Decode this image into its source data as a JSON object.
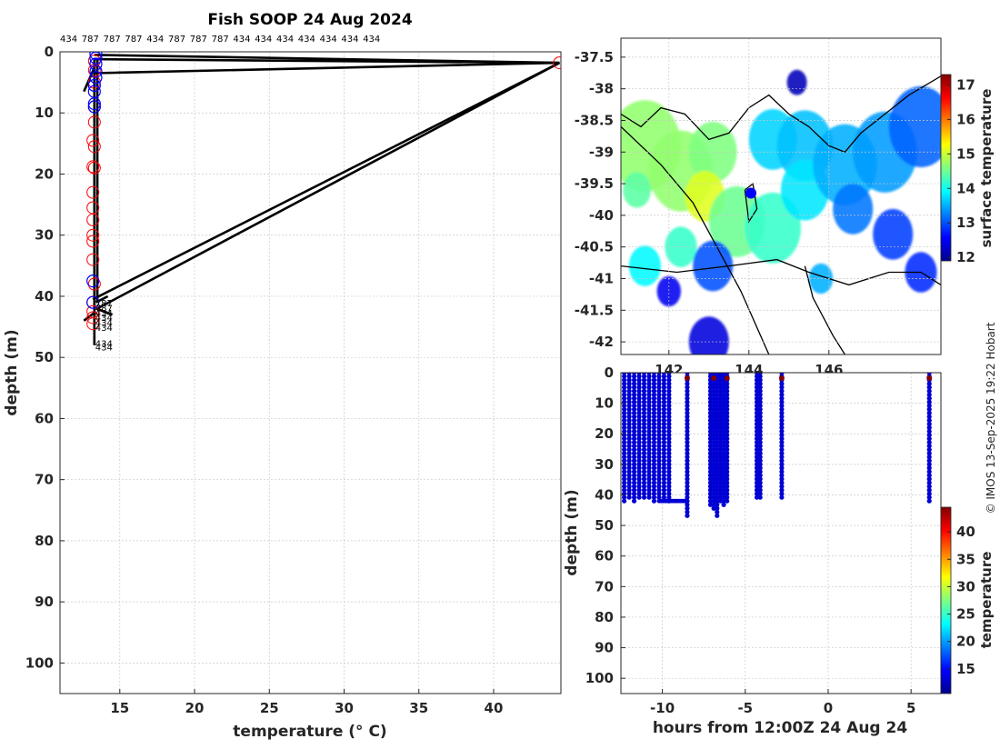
{
  "title": "Fish SOOP 24 Aug 2024",
  "credit": "© IMOS 13-Sep-2025 19:22 Hobart",
  "colors": {
    "near": "#0000ff",
    "far": "#ff0000",
    "line": "#000000"
  },
  "chart_data": [
    {
      "type": "scatter",
      "name": "profile",
      "xlabel": "temperature (° C)",
      "ylabel": "depth (m)",
      "xlim": [
        11,
        44.5
      ],
      "ylim": [
        0,
        105
      ],
      "y_reversed": true,
      "xticks": [
        15,
        20,
        25,
        30,
        35,
        40
      ],
      "yticks": [
        0,
        10,
        20,
        30,
        40,
        50,
        60,
        70,
        80,
        90,
        100
      ],
      "grid": true,
      "top_labels": [
        "434",
        "787",
        "787",
        "787",
        "434",
        "787",
        "787",
        "787",
        "434",
        "434",
        "434",
        "434",
        "434",
        "434",
        "434"
      ],
      "depth_labels": [
        {
          "t": 13.6,
          "d": 41.2,
          "text": "787"
        },
        {
          "t": 13.6,
          "d": 42.0,
          "text": "787"
        },
        {
          "t": 13.6,
          "d": 42.8,
          "text": "434"
        },
        {
          "t": 13.6,
          "d": 43.6,
          "text": "434"
        },
        {
          "t": 13.6,
          "d": 44.4,
          "text": "434"
        },
        {
          "t": 13.6,
          "d": 45.2,
          "text": "434"
        },
        {
          "t": 13.6,
          "d": 47.8,
          "text": "434"
        },
        {
          "t": 13.6,
          "d": 48.4,
          "text": "434"
        }
      ],
      "far_points": [
        {
          "t": 13.3,
          "d": 1.5
        },
        {
          "t": 13.3,
          "d": 3
        },
        {
          "t": 13.3,
          "d": 5
        },
        {
          "t": 13.3,
          "d": 9
        },
        {
          "t": 13.3,
          "d": 11.5
        },
        {
          "t": 13.2,
          "d": 14.5
        },
        {
          "t": 13.3,
          "d": 15.5
        },
        {
          "t": 13.2,
          "d": 18.8
        },
        {
          "t": 13.3,
          "d": 19
        },
        {
          "t": 13.2,
          "d": 23
        },
        {
          "t": 13.2,
          "d": 25.5
        },
        {
          "t": 13.2,
          "d": 27.5
        },
        {
          "t": 13.2,
          "d": 30
        },
        {
          "t": 13.2,
          "d": 31
        },
        {
          "t": 13.2,
          "d": 34
        },
        {
          "t": 13.3,
          "d": 38
        },
        {
          "t": 13.2,
          "d": 41
        },
        {
          "t": 13.2,
          "d": 42.5
        },
        {
          "t": 13.2,
          "d": 43.5
        },
        {
          "t": 13.2,
          "d": 44.5
        },
        {
          "t": 44.4,
          "d": 1.8
        }
      ],
      "near_points": [
        {
          "t": 13.4,
          "d": 0.3
        },
        {
          "t": 13.4,
          "d": 1
        },
        {
          "t": 13.4,
          "d": 2
        },
        {
          "t": 13.4,
          "d": 3.2
        },
        {
          "t": 13.4,
          "d": 4.2
        },
        {
          "t": 13.3,
          "d": 5.5
        },
        {
          "t": 13.3,
          "d": 6.5
        },
        {
          "t": 13.3,
          "d": 8.5
        },
        {
          "t": 13.3,
          "d": 9
        },
        {
          "t": 13.2,
          "d": 37.5
        },
        {
          "t": 13.2,
          "d": 41
        }
      ],
      "profiles": [
        [
          {
            "t": 13.3,
            "d": 0.5
          },
          {
            "t": 44.4,
            "d": 1.8
          },
          {
            "t": 13.3,
            "d": 1.2
          }
        ],
        [
          {
            "t": 13.3,
            "d": 3.5
          },
          {
            "t": 44.4,
            "d": 1.8
          },
          {
            "t": 13.2,
            "d": 40.5
          }
        ],
        [
          {
            "t": 44.4,
            "d": 1.8
          },
          {
            "t": 13.5,
            "d": 42
          }
        ],
        [
          {
            "t": 13.3,
            "d": 1
          },
          {
            "t": 13.3,
            "d": 48
          }
        ],
        [
          {
            "t": 13.5,
            "d": 1
          },
          {
            "t": 13.5,
            "d": 41
          }
        ],
        [
          {
            "t": 13.4,
            "d": 2
          },
          {
            "t": 12.6,
            "d": 6.5
          }
        ],
        [
          {
            "t": 13.4,
            "d": 42.5
          },
          {
            "t": 12.6,
            "d": 44
          }
        ],
        [
          {
            "t": 13.4,
            "d": 42
          },
          {
            "t": 14.5,
            "d": 43
          }
        ],
        [
          {
            "t": 13.4,
            "d": 41
          },
          {
            "t": 14.2,
            "d": 40
          }
        ]
      ]
    },
    {
      "type": "heatmap",
      "name": "map",
      "colorbar_label": "surface temperature",
      "clim": [
        11.9,
        17.3
      ],
      "colorbar_ticks": [
        12,
        13,
        14,
        15,
        16,
        17
      ],
      "yticks": [
        -37.5,
        -38,
        -38.5,
        -39,
        -39.5,
        -40,
        -40.5,
        -41,
        -41.5,
        -42
      ],
      "ylim": [
        -42.2,
        -37.2
      ],
      "xlim": [
        140.8,
        148.8
      ],
      "xticks": [
        142,
        144,
        146
      ],
      "xtick_labels": [
        "142",
        "144",
        "146"
      ],
      "marker": {
        "lon": 144.05,
        "lat": -39.65
      },
      "blobs": [
        {
          "lon": 141.4,
          "lat": -38.9,
          "r": 0.9,
          "v": 14.7
        },
        {
          "lon": 142.3,
          "lat": -39.3,
          "r": 0.8,
          "v": 14.7
        },
        {
          "lon": 143.1,
          "lat": -39.0,
          "r": 0.6,
          "v": 14.6
        },
        {
          "lon": 142.9,
          "lat": -39.7,
          "r": 0.5,
          "v": 15.1
        },
        {
          "lon": 143.7,
          "lat": -40.1,
          "r": 0.7,
          "v": 14.5
        },
        {
          "lon": 144.6,
          "lat": -40.2,
          "r": 0.7,
          "v": 14.2
        },
        {
          "lon": 144.6,
          "lat": -38.8,
          "r": 0.6,
          "v": 13.7
        },
        {
          "lon": 145.4,
          "lat": -38.9,
          "r": 0.7,
          "v": 13.6
        },
        {
          "lon": 145.4,
          "lat": -39.6,
          "r": 0.6,
          "v": 13.8
        },
        {
          "lon": 146.4,
          "lat": -39.2,
          "r": 0.8,
          "v": 13.5
        },
        {
          "lon": 147.4,
          "lat": -39.0,
          "r": 0.8,
          "v": 13.4
        },
        {
          "lon": 148.3,
          "lat": -38.6,
          "r": 0.8,
          "v": 13.1
        },
        {
          "lon": 146.6,
          "lat": -39.9,
          "r": 0.5,
          "v": 13.2
        },
        {
          "lon": 147.6,
          "lat": -40.3,
          "r": 0.5,
          "v": 12.9
        },
        {
          "lon": 148.3,
          "lat": -40.9,
          "r": 0.4,
          "v": 12.8
        },
        {
          "lon": 141.4,
          "lat": -40.8,
          "r": 0.4,
          "v": 13.9
        },
        {
          "lon": 142.3,
          "lat": -40.5,
          "r": 0.4,
          "v": 14.2
        },
        {
          "lon": 143.1,
          "lat": -40.8,
          "r": 0.5,
          "v": 13.0
        },
        {
          "lon": 142.0,
          "lat": -41.2,
          "r": 0.3,
          "v": 12.5
        },
        {
          "lon": 143.0,
          "lat": -42.0,
          "r": 0.5,
          "v": 12.4
        },
        {
          "lon": 145.2,
          "lat": -37.9,
          "r": 0.25,
          "v": 12.2
        },
        {
          "lon": 145.8,
          "lat": -41.0,
          "r": 0.3,
          "v": 13.5
        },
        {
          "lon": 141.2,
          "lat": -39.6,
          "r": 0.35,
          "v": 14.4
        }
      ],
      "coastlines": [
        [
          {
            "lon": 140.8,
            "lat": -38.4
          },
          {
            "lon": 141.3,
            "lat": -38.6
          },
          {
            "lon": 141.8,
            "lat": -38.3
          },
          {
            "lon": 142.4,
            "lat": -38.4
          },
          {
            "lon": 143.0,
            "lat": -38.8
          },
          {
            "lon": 143.5,
            "lat": -38.7
          },
          {
            "lon": 144.0,
            "lat": -38.3
          },
          {
            "lon": 144.5,
            "lat": -38.1
          },
          {
            "lon": 145.0,
            "lat": -38.4
          },
          {
            "lon": 145.5,
            "lat": -38.6
          },
          {
            "lon": 146.0,
            "lat": -38.9
          },
          {
            "lon": 146.4,
            "lat": -39.0
          },
          {
            "lon": 146.8,
            "lat": -38.7
          },
          {
            "lon": 147.4,
            "lat": -38.4
          },
          {
            "lon": 148.0,
            "lat": -38.1
          },
          {
            "lon": 148.8,
            "lat": -37.8
          }
        ],
        [
          {
            "lon": 140.8,
            "lat": -40.8
          },
          {
            "lon": 142.2,
            "lat": -40.9
          },
          {
            "lon": 143.5,
            "lat": -40.8
          },
          {
            "lon": 144.7,
            "lat": -40.7
          },
          {
            "lon": 145.5,
            "lat": -40.9
          },
          {
            "lon": 146.5,
            "lat": -41.1
          },
          {
            "lon": 147.5,
            "lat": -40.9
          },
          {
            "lon": 148.3,
            "lat": -40.9
          },
          {
            "lon": 148.8,
            "lat": -41.1
          }
        ],
        [
          {
            "lon": 143.9,
            "lat": -39.6
          },
          {
            "lon": 144.1,
            "lat": -39.5
          },
          {
            "lon": 144.2,
            "lat": -39.9
          },
          {
            "lon": 144.0,
            "lat": -40.1
          },
          {
            "lon": 143.9,
            "lat": -39.6
          }
        ],
        [
          {
            "lon": 140.8,
            "lat": -38.6
          },
          {
            "lon": 141.8,
            "lat": -39.2
          },
          {
            "lon": 142.6,
            "lat": -39.8
          },
          {
            "lon": 143.2,
            "lat": -40.5
          },
          {
            "lon": 143.8,
            "lat": -41.2
          },
          {
            "lon": 144.5,
            "lat": -42.2
          }
        ],
        [
          {
            "lon": 145.4,
            "lat": -40.8
          },
          {
            "lon": 145.6,
            "lat": -41.3
          },
          {
            "lon": 146.1,
            "lat": -41.9
          },
          {
            "lon": 146.4,
            "lat": -42.2
          }
        ]
      ]
    },
    {
      "type": "scatter",
      "name": "time-depth",
      "xlabel": "hours from 12:00Z 24 Aug 24",
      "ylabel": "depth (m)",
      "xlim": [
        -12.5,
        6.8
      ],
      "ylim": [
        0,
        105
      ],
      "y_reversed": true,
      "xticks": [
        -10,
        -5,
        0,
        5
      ],
      "yticks": [
        0,
        10,
        20,
        30,
        40,
        50,
        60,
        70,
        80,
        90,
        100
      ],
      "colorbar_label": "temperature",
      "clim": [
        10.5,
        44.5
      ],
      "colorbar_ticks": [
        15,
        20,
        25,
        30,
        35,
        40
      ],
      "base_temperature": 13.3,
      "hot_temperature": 44.4,
      "casts": [
        {
          "h": -12.3,
          "dmax": 43
        },
        {
          "h": -12.0,
          "dmax": 42
        },
        {
          "h": -11.7,
          "dmax": 42.5
        },
        {
          "h": -11.4,
          "dmax": 42
        },
        {
          "h": -11.1,
          "dmax": 42
        },
        {
          "h": -10.8,
          "dmax": 41.5
        },
        {
          "h": -10.5,
          "dmax": 42.5
        },
        {
          "h": -10.2,
          "dmax": 41
        },
        {
          "h": -9.9,
          "dmax": 42
        },
        {
          "h": -9.6,
          "dmax": 42.5
        },
        {
          "h": -8.5,
          "dmax": 48
        },
        {
          "h": -7.1,
          "dmax": 44
        },
        {
          "h": -6.9,
          "dmax": 45
        },
        {
          "h": -6.7,
          "dmax": 47.5
        },
        {
          "h": -6.5,
          "dmax": 43
        },
        {
          "h": -6.3,
          "dmax": 44
        },
        {
          "h": -6.1,
          "dmax": 43
        },
        {
          "h": -4.3,
          "dmax": 41
        },
        {
          "h": -4.1,
          "dmax": 42
        },
        {
          "h": -2.8,
          "dmax": 41
        },
        {
          "h": 6.1,
          "dmax": 43
        }
      ],
      "bottom_segment": {
        "h0": -10.2,
        "h1": -8.5,
        "d": 42
      },
      "hot_points": [
        {
          "h": -8.5,
          "d": 1.8
        },
        {
          "h": -6.9,
          "d": 1.8
        },
        {
          "h": -6.1,
          "d": 1.8
        },
        {
          "h": -2.8,
          "d": 1.8
        },
        {
          "h": 6.1,
          "d": 1.8
        }
      ]
    }
  ]
}
